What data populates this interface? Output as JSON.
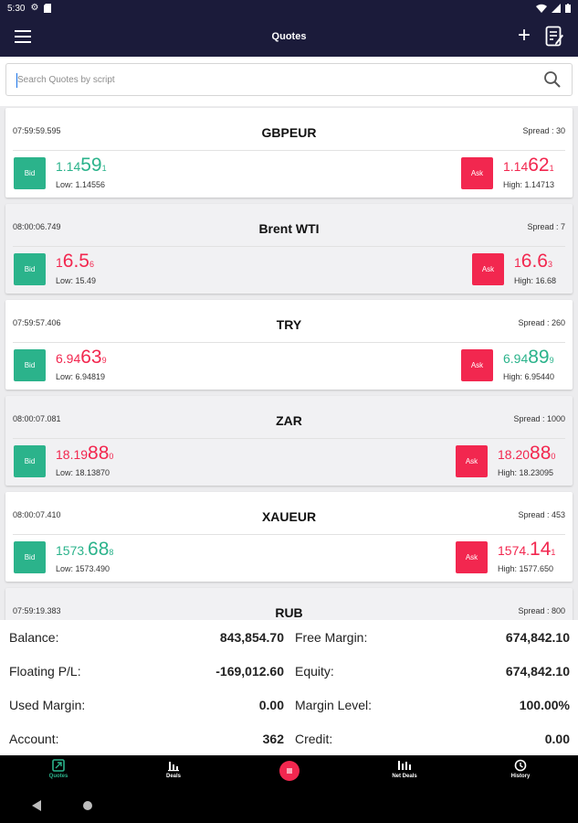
{
  "status_bar": {
    "time": "5:30"
  },
  "app_bar": {
    "title": "Quotes"
  },
  "search": {
    "placeholder": "Search Quotes by script"
  },
  "quotes": [
    {
      "time": "07:59:59.595",
      "symbol": "GBPEUR",
      "spread": "Spread : 30",
      "bid_label": "Bid",
      "bid_pre": "1.14",
      "bid_big": "59",
      "bid_sub": "1",
      "low": "Low: 1.14556",
      "ask_label": "Ask",
      "ask_pre": "1.14",
      "ask_big": "62",
      "ask_sub": "1",
      "high": "High: 1.14713"
    },
    {
      "time": "08:00:06.749",
      "symbol": "Brent WTI",
      "spread": "Spread : 7",
      "bid_label": "Bid",
      "bid_pre": "1",
      "bid_big": "6.5",
      "bid_sub": "6",
      "low": "Low: 15.49",
      "ask_label": "Ask",
      "ask_pre": "1",
      "ask_big": "6.6",
      "ask_sub": "3",
      "high": "High: 16.68"
    },
    {
      "time": "07:59:57.406",
      "symbol": "TRY",
      "spread": "Spread : 260",
      "bid_label": "Bid",
      "bid_pre": "6.94",
      "bid_big": "63",
      "bid_sub": "9",
      "low": "Low: 6.94819",
      "ask_label": "Ask",
      "ask_pre": "6.94",
      "ask_big": "89",
      "ask_sub": "9",
      "high": "High: 6.95440"
    },
    {
      "time": "08:00:07.081",
      "symbol": "ZAR",
      "spread": "Spread : 1000",
      "bid_label": "Bid",
      "bid_pre": "18.19",
      "bid_big": "88",
      "bid_sub": "0",
      "low": "Low: 18.13870",
      "ask_label": "Ask",
      "ask_pre": "18.20",
      "ask_big": "88",
      "ask_sub": "0",
      "high": "High: 18.23095"
    },
    {
      "time": "08:00:07.410",
      "symbol": "XAUEUR",
      "spread": "Spread : 453",
      "bid_label": "Bid",
      "bid_pre": "1573.",
      "bid_big": "68",
      "bid_sub": "8",
      "low": "Low: 1573.490",
      "ask_label": "Ask",
      "ask_pre": "1574.",
      "ask_big": "14",
      "ask_sub": "1",
      "high": "High: 1577.650"
    },
    {
      "time": "07:59:19.383",
      "symbol": "RUB",
      "spread": "Spread : 800"
    }
  ],
  "summary": {
    "balance_label": "Balance:",
    "balance": "843,854.70",
    "free_margin_label": "Free Margin:",
    "free_margin": "674,842.10",
    "floating_label": "Floating P/L:",
    "floating": "-169,012.60",
    "equity_label": "Equity:",
    "equity": "674,842.10",
    "used_margin_label": "Used Margin:",
    "used_margin": "0.00",
    "margin_level_label": "Margin Level:",
    "margin_level": "100.00%",
    "account_label": "Account:",
    "account": "362",
    "credit_label": "Credit:",
    "credit": "0.00"
  },
  "nav": {
    "quotes": "Quotes",
    "deals": "Deals",
    "net_deals": "Net Deals",
    "history": "History"
  },
  "colors": {
    "header": "#1b1b3a",
    "bid": "#2bb38b",
    "ask": "#f2274f",
    "nav_active": "#2bb38b"
  }
}
